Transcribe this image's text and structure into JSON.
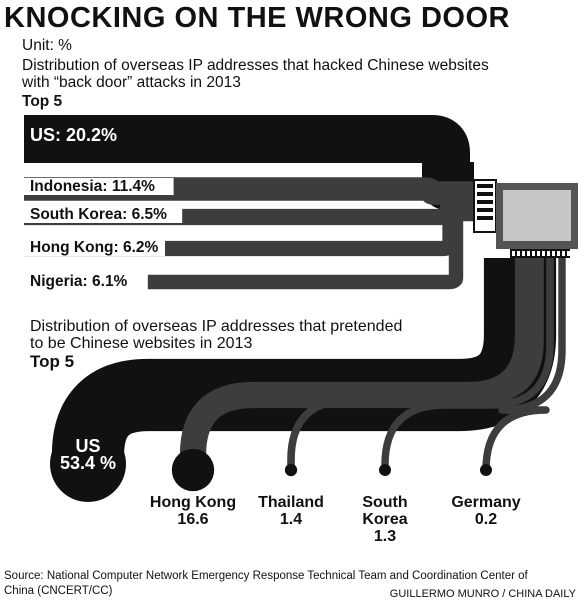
{
  "title": "KNOCKING ON THE WRONG DOOR",
  "unit": "Unit: %",
  "chart_data": [
    {
      "type": "bar",
      "title": "Distribution of overseas IP addresses that hacked Chinese websites with “back door” attacks in 2013",
      "subtitle": "Top 5",
      "categories": [
        "US",
        "Indonesia",
        "South Korea",
        "Hong Kong",
        "Nigeria"
      ],
      "values": [
        20.2,
        11.4,
        6.5,
        6.2,
        6.1
      ],
      "labels": [
        "US: 20.2%",
        "Indonesia: 11.4%",
        "South Korea: 6.5%",
        "Hong Kong: 6.2%",
        "Nigeria: 6.1%"
      ]
    },
    {
      "type": "bar",
      "title": "Distribution of overseas IP addresses that pretended to be Chinese websites in 2013",
      "subtitle": "Top 5",
      "categories": [
        "US",
        "Hong Kong",
        "Thailand",
        "South Korea",
        "Germany"
      ],
      "values": [
        53.4,
        16.6,
        1.4,
        1.3,
        0.2
      ],
      "labels": [
        [
          "US",
          "53.4 %"
        ],
        [
          "Hong Kong",
          "16.6"
        ],
        [
          "Thailand",
          "1.4"
        ],
        [
          "South",
          "Korea",
          "1.3"
        ],
        [
          "Germany",
          "0.2"
        ]
      ]
    }
  ],
  "source": [
    "Source: National Computer Network Emergency Response Technical Team and Coordination Center of",
    "China (CNCERT/CC)"
  ],
  "credit": "GUILLERMO MUNRO / CHINA DAILY",
  "colors": {
    "ink": "#111111",
    "pipe": "#3d3d3d",
    "monitor": "#555555",
    "screen": "#c6c6c6"
  }
}
